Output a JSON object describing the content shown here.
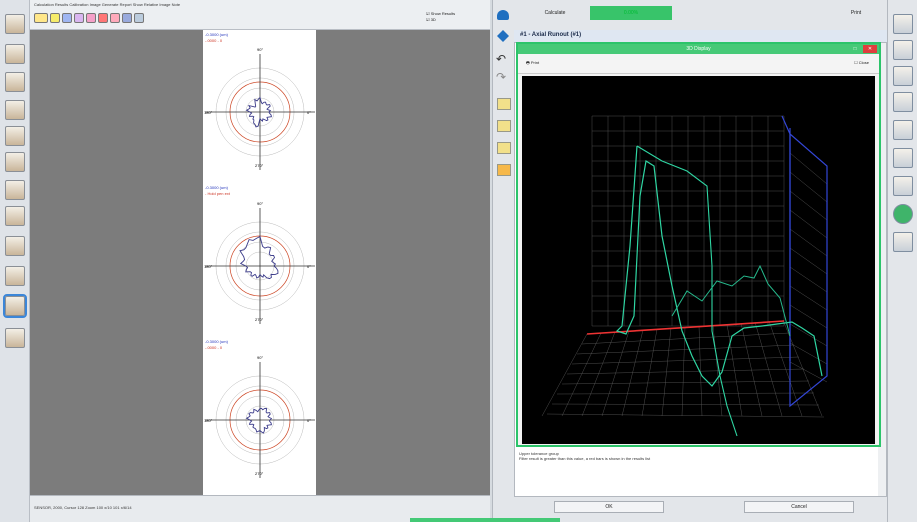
{
  "top_menu": "Calculation Results   Calibration Image   Generate Report   Show Relative Image Note",
  "top_checks": [
    "Show Results",
    "3D"
  ],
  "plots": [
    {
      "legend1": "-0.3000 (um)",
      "legend2": "-.0000 - 0",
      "deg_top": "90°",
      "deg_left": "180°",
      "deg_right": "0°",
      "deg_bottom": "270°"
    },
    {
      "legend1": "-0.3000 (um)",
      "legend2": "- Hold pen ext",
      "deg_top": "90°",
      "deg_left": "180°",
      "deg_right": "0°",
      "deg_bottom": "270°"
    },
    {
      "legend1": "-0.3000 (um)",
      "legend2": "-.0000 - 0",
      "deg_top": "90°",
      "deg_left": "180°",
      "deg_right": "0°",
      "deg_bottom": "270°"
    }
  ],
  "status_text": "SENSOR, 2000, Cursor 128 Zoom 100 x/10 101 x/6/14",
  "calculate_label": "Calculate",
  "progress_label": "0.00%",
  "print_label": "Print",
  "result_title": "#1 - Axial Runout (#1)",
  "dialog": {
    "title": "3D Display",
    "print_label": "Print",
    "close_label": "Close",
    "maximize_glyph": "□",
    "close_glyph": "✕"
  },
  "notes": [
    "Upper tolerance group",
    "Filter result is greater than this value, a red bars is shown in the results list"
  ],
  "ok_label": "OK",
  "cancel_label": "Cancel",
  "colors": {
    "accent_green": "#2cc46a",
    "red_axis": "#e33",
    "blue_axis": "#3346d6",
    "trace": "#2fd6a3"
  }
}
